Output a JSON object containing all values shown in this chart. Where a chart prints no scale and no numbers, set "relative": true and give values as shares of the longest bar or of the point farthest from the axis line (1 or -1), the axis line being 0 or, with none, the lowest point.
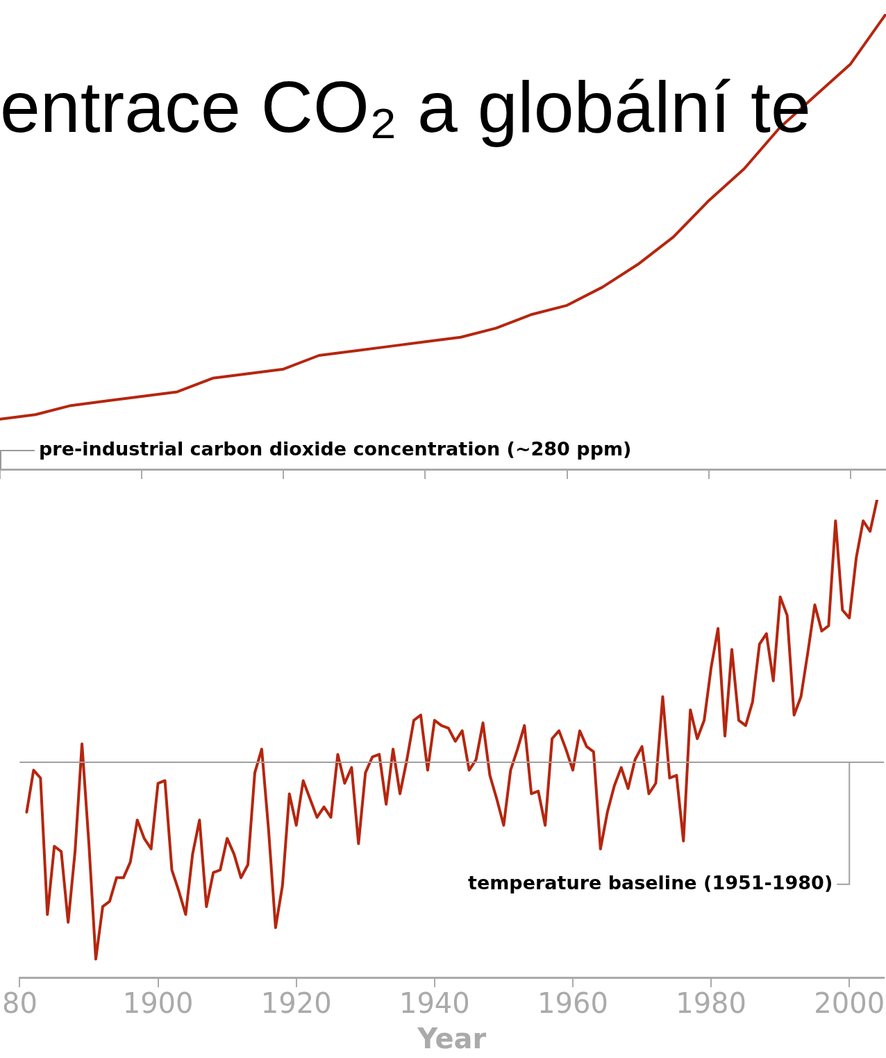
{
  "chart_data": [
    {
      "type": "line",
      "title": "entrace CO₂ a globální te",
      "relative": true,
      "categories": [
        null,
        null,
        null,
        null,
        null,
        null,
        null,
        null,
        null,
        null,
        null,
        null,
        null,
        null,
        null,
        null,
        null,
        null,
        null,
        null,
        null,
        null,
        null,
        null,
        null,
        null
      ],
      "tick_labels": false,
      "grid": false,
      "legend": false,
      "marker": "none",
      "line_style": "solid",
      "annotations": [
        "pre-industrial carbon dioxide concentration (~280 ppm)"
      ],
      "series": [
        {
          "color": "#b5260f",
          "values": [
            0.11,
            0.12,
            0.14,
            0.15,
            0.16,
            0.17,
            0.2,
            0.21,
            0.22,
            0.25,
            0.26,
            0.27,
            0.28,
            0.29,
            0.31,
            0.34,
            0.36,
            0.4,
            0.45,
            0.51,
            0.59,
            0.66,
            0.75,
            0.82,
            0.89,
            1.0
          ]
        }
      ]
    },
    {
      "type": "line",
      "xlabel": "Year",
      "relative": true,
      "xlim": [
        1880,
        2005
      ],
      "xticks": [
        {
          "value": 1880,
          "label": "80"
        },
        1900,
        1920,
        1940,
        1960,
        1980,
        2000
      ],
      "tick_labels": "x",
      "grid": false,
      "legend": false,
      "marker": "none",
      "line_style": "solid",
      "ref_lines": [
        {
          "axis": "y",
          "value": 0,
          "label": "temperature baseline (1951-1980)",
          "color": "#a0a0a0"
        }
      ],
      "series": [
        {
          "color": "#b5260f",
          "x": [
            1881,
            1882,
            1883,
            1884,
            1885,
            1886,
            1887,
            1888,
            1889,
            1890,
            1891,
            1892,
            1893,
            1894,
            1895,
            1896,
            1897,
            1898,
            1899,
            1900,
            1901,
            1902,
            1903,
            1904,
            1905,
            1906,
            1907,
            1908,
            1909,
            1910,
            1911,
            1912,
            1913,
            1914,
            1915,
            1916,
            1917,
            1918,
            1919,
            1920,
            1921,
            1922,
            1923,
            1924,
            1925,
            1926,
            1927,
            1928,
            1929,
            1930,
            1931,
            1932,
            1933,
            1934,
            1935,
            1936,
            1937,
            1938,
            1939,
            1940,
            1941,
            1942,
            1943,
            1944,
            1945,
            1946,
            1947,
            1948,
            1949,
            1950,
            1951,
            1952,
            1953,
            1954,
            1955,
            1956,
            1957,
            1958,
            1959,
            1960,
            1961,
            1962,
            1963,
            1964,
            1965,
            1966,
            1967,
            1968,
            1969,
            1970,
            1971,
            1972,
            1973,
            1974,
            1975,
            1976,
            1977,
            1978,
            1979,
            1980,
            1981,
            1982,
            1983,
            1984,
            1985,
            1986,
            1987,
            1988,
            1989,
            1990,
            1991,
            1992,
            1993,
            1994,
            1995,
            1996,
            1997,
            1998,
            1999,
            2000,
            2001,
            2002,
            2003,
            2004
          ],
          "values": [
            -0.19,
            -0.03,
            -0.06,
            -0.58,
            -0.32,
            -0.34,
            -0.61,
            -0.34,
            0.07,
            -0.31,
            -0.75,
            -0.55,
            -0.53,
            -0.44,
            -0.44,
            -0.38,
            -0.22,
            -0.29,
            -0.33,
            -0.08,
            -0.07,
            -0.41,
            -0.49,
            -0.58,
            -0.35,
            -0.22,
            -0.55,
            -0.42,
            -0.41,
            -0.29,
            -0.35,
            -0.44,
            -0.39,
            -0.04,
            0.05,
            -0.26,
            -0.63,
            -0.47,
            -0.12,
            -0.24,
            -0.07,
            -0.14,
            -0.21,
            -0.17,
            -0.21,
            0.03,
            -0.08,
            -0.02,
            -0.31,
            -0.04,
            0.02,
            0.03,
            -0.16,
            0.05,
            -0.12,
            0.01,
            0.16,
            0.18,
            -0.03,
            0.16,
            0.14,
            0.13,
            0.08,
            0.12,
            -0.03,
            0.01,
            0.15,
            -0.05,
            -0.14,
            -0.24,
            -0.03,
            0.05,
            0.14,
            -0.12,
            -0.11,
            -0.24,
            0.09,
            0.12,
            0.05,
            -0.03,
            0.12,
            0.06,
            0.04,
            -0.33,
            -0.19,
            -0.09,
            -0.02,
            -0.1,
            0.01,
            0.06,
            -0.12,
            -0.08,
            0.25,
            -0.06,
            -0.05,
            -0.3,
            0.2,
            0.09,
            0.16,
            0.36,
            0.51,
            0.1,
            0.43,
            0.16,
            0.14,
            0.23,
            0.45,
            0.49,
            0.31,
            0.63,
            0.56,
            0.18,
            0.25,
            0.42,
            0.6,
            0.5,
            0.52,
            0.92,
            0.58,
            0.55,
            0.78,
            0.92,
            0.88,
            1.0
          ]
        }
      ]
    }
  ]
}
